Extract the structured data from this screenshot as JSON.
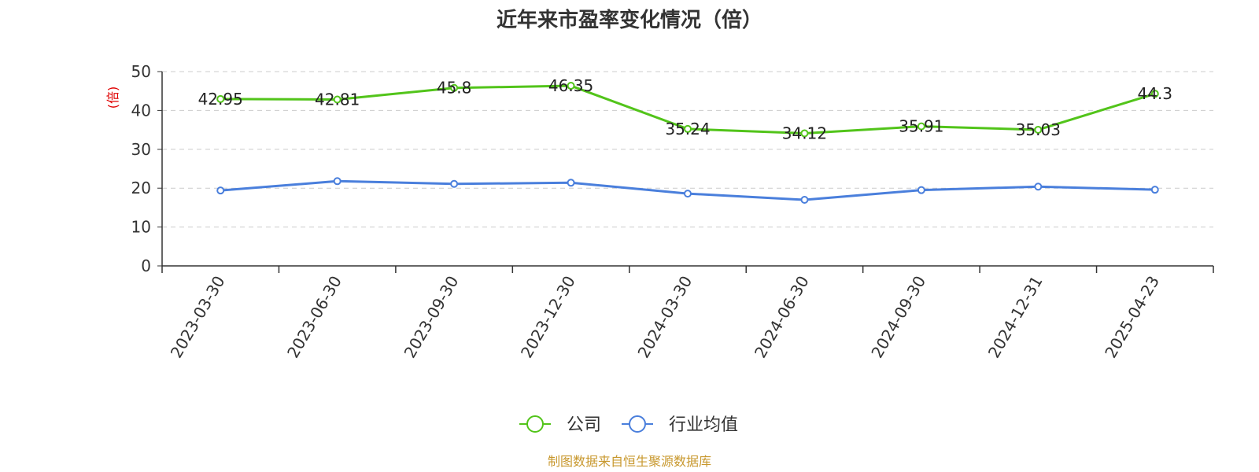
{
  "colors": {
    "company": "#52c41a",
    "industry": "#4a7fdc",
    "ylabel": "#e00000",
    "source": "#c8982e",
    "grid": "#cccccc",
    "axis": "#333333"
  },
  "chart_data": {
    "type": "line",
    "title": "近年来市盈率变化情况（倍）",
    "ylabel": "(倍)",
    "xlabel": "",
    "ylim": [
      0,
      50
    ],
    "yticks": [
      0,
      10,
      20,
      30,
      40,
      50
    ],
    "grid": true,
    "legend_position": "bottom-center",
    "categories": [
      "2023-03-30",
      "2023-06-30",
      "2023-09-30",
      "2023-12-30",
      "2024-03-30",
      "2024-06-30",
      "2024-09-30",
      "2024-12-31",
      "2025-04-23"
    ],
    "series": [
      {
        "name": "公司",
        "values": [
          42.95,
          42.81,
          45.8,
          46.35,
          35.24,
          34.12,
          35.91,
          35.03,
          44.3
        ],
        "labels": [
          "42.95",
          "42.81",
          "45.8",
          "46.35",
          "35.24",
          "34.12",
          "35.91",
          "35.03",
          "44.3"
        ]
      },
      {
        "name": "行业均值",
        "values": [
          19.4,
          21.8,
          21.1,
          21.4,
          18.6,
          17.0,
          19.5,
          20.4,
          19.6
        ]
      }
    ]
  },
  "source": "制图数据来自恒生聚源数据库"
}
